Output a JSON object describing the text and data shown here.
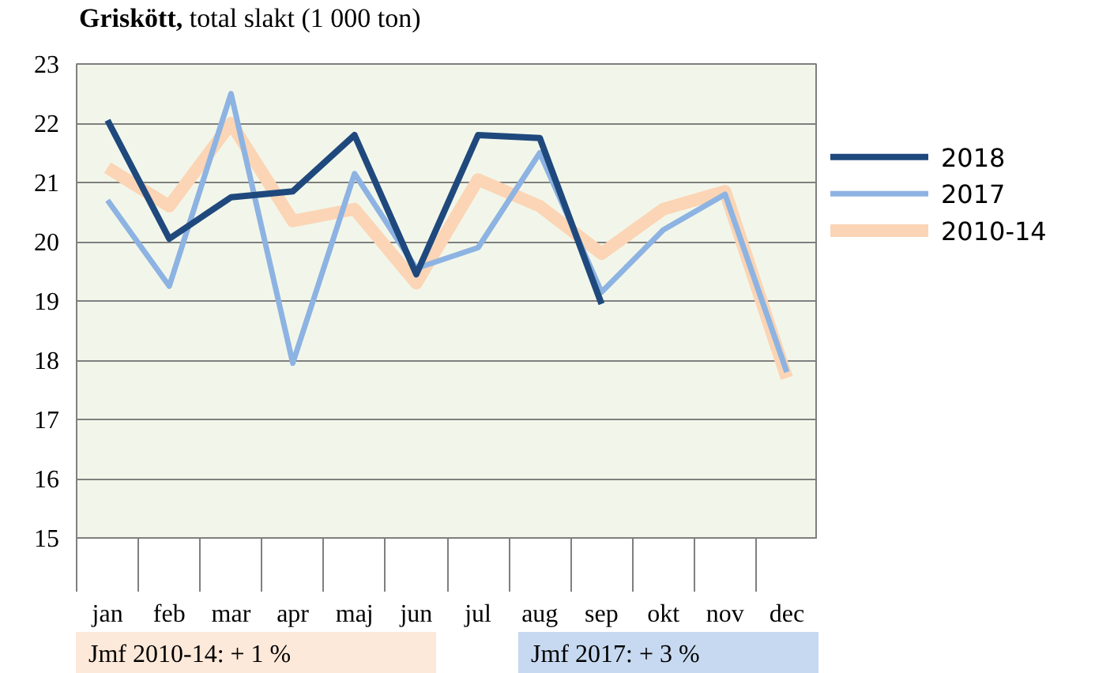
{
  "chart_data": {
    "type": "line",
    "title": "Griskött, total slakt (1 000 ton)",
    "categories": [
      "jan",
      "feb",
      "mar",
      "apr",
      "maj",
      "jun",
      "jul",
      "aug",
      "sep",
      "okt",
      "nov",
      "dec"
    ],
    "series": [
      {
        "name": "2018",
        "color": "#1f497d",
        "values": [
          22.05,
          20.05,
          20.75,
          20.85,
          21.8,
          19.45,
          21.8,
          21.75,
          18.95,
          null,
          null,
          null
        ]
      },
      {
        "name": "2017",
        "color": "#8db3e2",
        "values": [
          20.7,
          19.25,
          22.5,
          17.95,
          21.15,
          19.55,
          19.9,
          21.5,
          19.15,
          20.2,
          20.8,
          17.8
        ]
      },
      {
        "name": "2010-14",
        "color": "#fbd5b5",
        "values": [
          21.25,
          20.6,
          22.0,
          20.35,
          20.55,
          19.3,
          21.05,
          20.6,
          19.8,
          20.55,
          20.85,
          17.7
        ]
      }
    ],
    "ylim": [
      15,
      23
    ],
    "yticks": [
      15,
      16,
      17,
      18,
      19,
      20,
      21,
      22,
      23
    ],
    "grid": "y",
    "legend": "right",
    "marker": "none",
    "line_style": "solid",
    "annotations": [
      "Jmf 2010-14: + 1 %",
      "Jmf 2017: + 3 %"
    ]
  }
}
